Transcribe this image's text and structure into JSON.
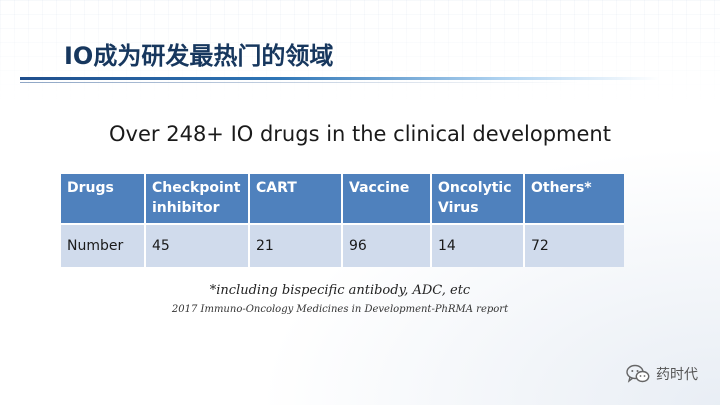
{
  "slide": {
    "title": "IO成为研发最热门的领域",
    "subtitle": "Over 248+ IO drugs in the clinical development"
  },
  "table": {
    "headers": [
      "Drugs",
      "Checkpoint inhibitor",
      "CART",
      "Vaccine",
      "Oncolytic Virus",
      "Others*"
    ],
    "rows": [
      [
        "Number",
        "45",
        "21",
        "96",
        "14",
        "72"
      ]
    ]
  },
  "footnote": "*including bispecific antibody, ADC, etc",
  "source": "2017 Immuno-Oncology Medicines in Development-PhRMA report",
  "watermark": {
    "icon": "wechat-icon",
    "text": "药时代"
  },
  "colors": {
    "title": "#17375e",
    "header_bg": "#4f81bd",
    "row_bg": "#d0dbec"
  }
}
